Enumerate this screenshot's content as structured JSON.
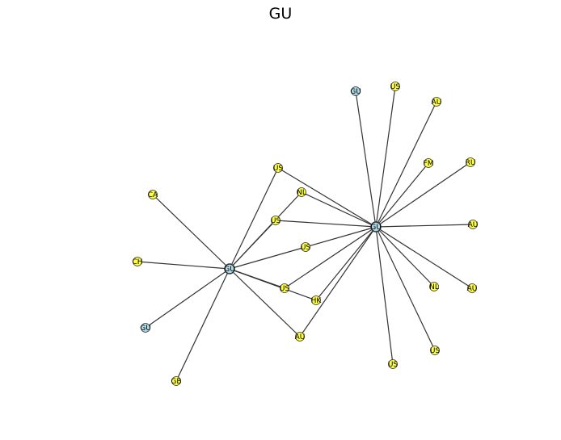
{
  "title": "GU",
  "colors": {
    "highlight": "#add8e6",
    "other": "#ffff44",
    "edge": "#333333",
    "node_stroke": "#333333"
  },
  "nodes": [
    {
      "id": "hub1",
      "label": "GU",
      "group": "highlight"
    },
    {
      "id": "hub2",
      "label": "GU",
      "group": "highlight"
    },
    {
      "id": "gu_top",
      "label": "GU",
      "group": "highlight"
    },
    {
      "id": "us_top",
      "label": "US",
      "group": "other"
    },
    {
      "id": "au_top",
      "label": "AU",
      "group": "other"
    },
    {
      "id": "fm",
      "label": "FM",
      "group": "other"
    },
    {
      "id": "ru",
      "label": "RU",
      "group": "other"
    },
    {
      "id": "au_right",
      "label": "AU",
      "group": "other"
    },
    {
      "id": "nl_right",
      "label": "NL",
      "group": "other"
    },
    {
      "id": "au_br",
      "label": "AU",
      "group": "other"
    },
    {
      "id": "us_br",
      "label": "US",
      "group": "other"
    },
    {
      "id": "us_bot",
      "label": "US",
      "group": "other"
    },
    {
      "id": "us_mid1",
      "label": "US",
      "group": "other"
    },
    {
      "id": "nl_mid",
      "label": "NL",
      "group": "other"
    },
    {
      "id": "us_mid2",
      "label": "US",
      "group": "other"
    },
    {
      "id": "us_mid3",
      "label": "US",
      "group": "other"
    },
    {
      "id": "us_mid4",
      "label": "US",
      "group": "other"
    },
    {
      "id": "hk",
      "label": "HK",
      "group": "other"
    },
    {
      "id": "au_mid",
      "label": "AU",
      "group": "other"
    },
    {
      "id": "ca",
      "label": "CA",
      "group": "other"
    },
    {
      "id": "ch",
      "label": "CH",
      "group": "other"
    },
    {
      "id": "gu_left",
      "label": "GU",
      "group": "highlight"
    },
    {
      "id": "gb",
      "label": "GB",
      "group": "other"
    }
  ],
  "edges": [
    [
      "hub2",
      "gu_top"
    ],
    [
      "hub2",
      "us_top"
    ],
    [
      "hub2",
      "au_top"
    ],
    [
      "hub2",
      "fm"
    ],
    [
      "hub2",
      "ru"
    ],
    [
      "hub2",
      "au_right"
    ],
    [
      "hub2",
      "nl_right"
    ],
    [
      "hub2",
      "au_br"
    ],
    [
      "hub2",
      "us_br"
    ],
    [
      "hub2",
      "us_bot"
    ],
    [
      "hub2",
      "us_mid1"
    ],
    [
      "hub2",
      "nl_mid"
    ],
    [
      "hub2",
      "us_mid2"
    ],
    [
      "hub2",
      "us_mid3"
    ],
    [
      "hub2",
      "us_mid4"
    ],
    [
      "hub2",
      "hk"
    ],
    [
      "hub2",
      "au_mid"
    ],
    [
      "hub1",
      "us_mid1"
    ],
    [
      "hub1",
      "nl_mid"
    ],
    [
      "hub1",
      "us_mid2"
    ],
    [
      "hub1",
      "us_mid3"
    ],
    [
      "hub1",
      "us_mid4"
    ],
    [
      "hub1",
      "hk"
    ],
    [
      "hub1",
      "au_mid"
    ],
    [
      "hub1",
      "ca"
    ],
    [
      "hub1",
      "ch"
    ],
    [
      "hub1",
      "gu_left"
    ],
    [
      "hub1",
      "gb"
    ]
  ]
}
